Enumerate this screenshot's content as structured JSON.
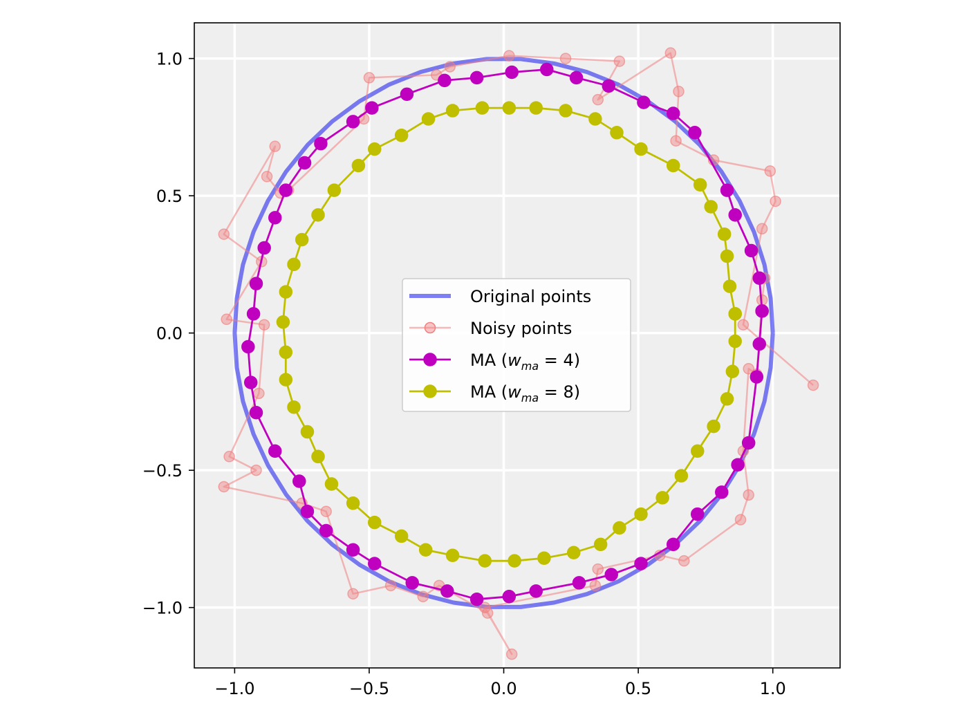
{
  "chart_data": {
    "type": "line",
    "title": "",
    "xlabel": "",
    "ylabel": "",
    "xlim": [
      -1.15,
      1.25
    ],
    "ylim": [
      -1.22,
      1.13
    ],
    "xticks": [
      -1.0,
      -0.5,
      0.0,
      0.5,
      1.0
    ],
    "yticks": [
      -1.0,
      -0.5,
      0.0,
      0.5,
      1.0
    ],
    "xtick_labels": [
      "−1.0",
      "−0.5",
      "0.0",
      "0.5",
      "1.0"
    ],
    "ytick_labels": [
      "−1.0",
      "−0.5",
      "0.0",
      "0.5",
      "1.0"
    ],
    "grid": true,
    "background": "#efefef",
    "legend_position": "center",
    "series": [
      {
        "name": "Original points",
        "color": "#0000ee",
        "marker": "none",
        "points": [
          [
            1.0,
            0.0
          ],
          [
            0.992,
            0.126
          ],
          [
            0.969,
            0.249
          ],
          [
            0.93,
            0.368
          ],
          [
            0.876,
            0.482
          ],
          [
            0.809,
            0.588
          ],
          [
            0.729,
            0.685
          ],
          [
            0.637,
            0.771
          ],
          [
            0.536,
            0.844
          ],
          [
            0.426,
            0.905
          ],
          [
            0.309,
            0.951
          ],
          [
            0.187,
            0.982
          ],
          [
            0.063,
            0.998
          ],
          [
            -0.063,
            0.998
          ],
          [
            -0.187,
            0.982
          ],
          [
            -0.309,
            0.951
          ],
          [
            -0.426,
            0.905
          ],
          [
            -0.536,
            0.844
          ],
          [
            -0.637,
            0.771
          ],
          [
            -0.729,
            0.685
          ],
          [
            -0.809,
            0.588
          ],
          [
            -0.876,
            0.482
          ],
          [
            -0.93,
            0.368
          ],
          [
            -0.969,
            0.249
          ],
          [
            -0.992,
            0.126
          ],
          [
            -1.0,
            0.0
          ],
          [
            -0.992,
            -0.126
          ],
          [
            -0.969,
            -0.249
          ],
          [
            -0.93,
            -0.368
          ],
          [
            -0.876,
            -0.482
          ],
          [
            -0.809,
            -0.588
          ],
          [
            -0.729,
            -0.685
          ],
          [
            -0.637,
            -0.771
          ],
          [
            -0.536,
            -0.844
          ],
          [
            -0.426,
            -0.905
          ],
          [
            -0.309,
            -0.951
          ],
          [
            -0.187,
            -0.982
          ],
          [
            -0.063,
            -0.998
          ],
          [
            0.063,
            -0.998
          ],
          [
            0.187,
            -0.982
          ],
          [
            0.309,
            -0.951
          ],
          [
            0.426,
            -0.905
          ],
          [
            0.536,
            -0.844
          ],
          [
            0.637,
            -0.771
          ],
          [
            0.729,
            -0.685
          ],
          [
            0.809,
            -0.588
          ],
          [
            0.876,
            -0.482
          ],
          [
            0.93,
            -0.368
          ],
          [
            0.969,
            -0.249
          ],
          [
            0.992,
            -0.126
          ],
          [
            1.0,
            0.0
          ]
        ]
      },
      {
        "name": "Noisy points",
        "color": "#f08080",
        "marker": "o",
        "points": [
          [
            1.15,
            -0.19
          ],
          [
            0.89,
            0.03
          ],
          [
            0.96,
            0.38
          ],
          [
            1.01,
            0.48
          ],
          [
            0.99,
            0.59
          ],
          [
            0.78,
            0.63
          ],
          [
            0.64,
            0.7
          ],
          [
            0.65,
            0.88
          ],
          [
            0.62,
            1.02
          ],
          [
            0.35,
            0.85
          ],
          [
            0.43,
            0.99
          ],
          [
            0.23,
            1.0
          ],
          [
            0.02,
            1.01
          ],
          [
            -0.2,
            0.97
          ],
          [
            -0.25,
            0.94
          ],
          [
            -0.5,
            0.93
          ],
          [
            -0.52,
            0.78
          ],
          [
            -0.8,
            0.52
          ],
          [
            -0.83,
            0.51
          ],
          [
            -0.88,
            0.57
          ],
          [
            -0.85,
            0.68
          ],
          [
            -1.04,
            0.36
          ],
          [
            -0.9,
            0.26
          ],
          [
            -1.03,
            0.05
          ],
          [
            -0.89,
            0.03
          ],
          [
            -0.91,
            -0.22
          ],
          [
            -1.02,
            -0.45
          ],
          [
            -0.92,
            -0.5
          ],
          [
            -1.04,
            -0.56
          ],
          [
            -0.75,
            -0.62
          ],
          [
            -0.66,
            -0.65
          ],
          [
            -0.56,
            -0.95
          ],
          [
            -0.42,
            -0.92
          ],
          [
            -0.3,
            -0.96
          ],
          [
            -0.24,
            -0.92
          ],
          [
            -0.06,
            -1.02
          ],
          [
            0.03,
            -1.17
          ],
          [
            -0.07,
            -1.0
          ],
          [
            0.34,
            -0.92
          ],
          [
            0.35,
            -0.86
          ],
          [
            0.58,
            -0.81
          ],
          [
            0.67,
            -0.83
          ],
          [
            0.88,
            -0.68
          ],
          [
            0.91,
            -0.59
          ],
          [
            0.89,
            -0.43
          ],
          [
            0.91,
            -0.13
          ],
          [
            0.94,
            -0.15
          ],
          [
            0.96,
            0.12
          ],
          [
            0.97,
            0.2
          ]
        ]
      },
      {
        "name": "MA (w_ma = 4)",
        "color": "#bf00bf",
        "marker": "o",
        "points": [
          [
            0.96,
            0.08
          ],
          [
            0.95,
            0.2
          ],
          [
            0.92,
            0.3
          ],
          [
            0.86,
            0.43
          ],
          [
            0.83,
            0.52
          ],
          [
            0.71,
            0.73
          ],
          [
            0.63,
            0.8
          ],
          [
            0.52,
            0.84
          ],
          [
            0.39,
            0.9
          ],
          [
            0.27,
            0.93
          ],
          [
            0.16,
            0.96
          ],
          [
            0.03,
            0.95
          ],
          [
            -0.1,
            0.93
          ],
          [
            -0.22,
            0.92
          ],
          [
            -0.36,
            0.87
          ],
          [
            -0.49,
            0.82
          ],
          [
            -0.56,
            0.77
          ],
          [
            -0.68,
            0.69
          ],
          [
            -0.74,
            0.62
          ],
          [
            -0.81,
            0.52
          ],
          [
            -0.85,
            0.42
          ],
          [
            -0.89,
            0.31
          ],
          [
            -0.92,
            0.18
          ],
          [
            -0.93,
            0.07
          ],
          [
            -0.95,
            -0.05
          ],
          [
            -0.94,
            -0.18
          ],
          [
            -0.92,
            -0.29
          ],
          [
            -0.85,
            -0.43
          ],
          [
            -0.76,
            -0.54
          ],
          [
            -0.73,
            -0.65
          ],
          [
            -0.66,
            -0.72
          ],
          [
            -0.56,
            -0.79
          ],
          [
            -0.48,
            -0.84
          ],
          [
            -0.34,
            -0.91
          ],
          [
            -0.21,
            -0.94
          ],
          [
            -0.1,
            -0.97
          ],
          [
            0.02,
            -0.96
          ],
          [
            0.12,
            -0.94
          ],
          [
            0.28,
            -0.91
          ],
          [
            0.4,
            -0.88
          ],
          [
            0.51,
            -0.84
          ],
          [
            0.63,
            -0.77
          ],
          [
            0.72,
            -0.66
          ],
          [
            0.81,
            -0.58
          ],
          [
            0.87,
            -0.48
          ],
          [
            0.91,
            -0.4
          ],
          [
            0.94,
            -0.16
          ],
          [
            0.95,
            -0.04
          ],
          [
            0.96,
            0.08
          ]
        ]
      },
      {
        "name": "MA (w_ma = 8)",
        "color": "#bfbf00",
        "marker": "o",
        "points": [
          [
            0.86,
            0.07
          ],
          [
            0.84,
            0.17
          ],
          [
            0.83,
            0.28
          ],
          [
            0.82,
            0.36
          ],
          [
            0.77,
            0.46
          ],
          [
            0.73,
            0.54
          ],
          [
            0.63,
            0.61
          ],
          [
            0.51,
            0.67
          ],
          [
            0.42,
            0.73
          ],
          [
            0.34,
            0.78
          ],
          [
            0.23,
            0.81
          ],
          [
            0.12,
            0.82
          ],
          [
            0.02,
            0.82
          ],
          [
            -0.08,
            0.82
          ],
          [
            -0.19,
            0.81
          ],
          [
            -0.28,
            0.78
          ],
          [
            -0.38,
            0.72
          ],
          [
            -0.48,
            0.67
          ],
          [
            -0.54,
            0.61
          ],
          [
            -0.63,
            0.52
          ],
          [
            -0.69,
            0.43
          ],
          [
            -0.75,
            0.34
          ],
          [
            -0.78,
            0.25
          ],
          [
            -0.81,
            0.15
          ],
          [
            -0.82,
            0.04
          ],
          [
            -0.81,
            -0.07
          ],
          [
            -0.81,
            -0.17
          ],
          [
            -0.78,
            -0.27
          ],
          [
            -0.73,
            -0.36
          ],
          [
            -0.69,
            -0.45
          ],
          [
            -0.64,
            -0.55
          ],
          [
            -0.56,
            -0.62
          ],
          [
            -0.48,
            -0.69
          ],
          [
            -0.38,
            -0.74
          ],
          [
            -0.29,
            -0.79
          ],
          [
            -0.19,
            -0.81
          ],
          [
            -0.07,
            -0.83
          ],
          [
            0.04,
            -0.83
          ],
          [
            0.15,
            -0.82
          ],
          [
            0.26,
            -0.8
          ],
          [
            0.36,
            -0.77
          ],
          [
            0.43,
            -0.71
          ],
          [
            0.51,
            -0.66
          ],
          [
            0.59,
            -0.6
          ],
          [
            0.66,
            -0.52
          ],
          [
            0.72,
            -0.43
          ],
          [
            0.78,
            -0.34
          ],
          [
            0.83,
            -0.24
          ],
          [
            0.85,
            -0.14
          ],
          [
            0.86,
            -0.03
          ],
          [
            0.86,
            0.07
          ]
        ]
      }
    ],
    "legend": [
      {
        "label": "Original points",
        "sub": "",
        "value": ""
      },
      {
        "label": "Noisy points",
        "sub": "",
        "value": ""
      },
      {
        "label": "MA (w",
        "sub": "ma",
        "value": " = 4)"
      },
      {
        "label": "MA (w",
        "sub": "ma",
        "value": " = 8)"
      }
    ]
  }
}
